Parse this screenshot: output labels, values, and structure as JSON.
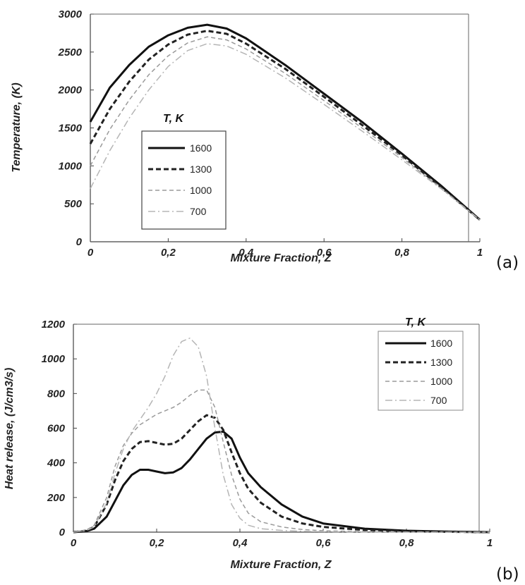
{
  "chart_data": [
    {
      "type": "line",
      "panel_label": "(a)",
      "xlabel": "Mixture Fraction, Z",
      "ylabel": "Temperature, (K)",
      "xlim": [
        0,
        1
      ],
      "ylim": [
        0,
        3000
      ],
      "x_ticks": [
        "0",
        "0,2",
        "0,4",
        "0,6",
        "0,8",
        "1"
      ],
      "y_ticks": [
        "0",
        "500",
        "1000",
        "1500",
        "2000",
        "2500",
        "3000"
      ],
      "legend_title": "T, K",
      "legend_position": "center-left",
      "grid": false,
      "x": [
        0,
        0.05,
        0.1,
        0.15,
        0.2,
        0.25,
        0.3,
        0.35,
        0.4,
        0.5,
        0.6,
        0.7,
        0.8,
        0.9,
        1.0
      ],
      "series": [
        {
          "name": "1600",
          "style": "solid",
          "color": "#111111",
          "values": [
            1580,
            2030,
            2330,
            2570,
            2720,
            2820,
            2860,
            2810,
            2680,
            2330,
            1950,
            1570,
            1160,
            740,
            290
          ]
        },
        {
          "name": "1300",
          "style": "dashed",
          "color": "#222222",
          "values": [
            1290,
            1750,
            2110,
            2400,
            2600,
            2730,
            2780,
            2740,
            2610,
            2280,
            1910,
            1530,
            1140,
            720,
            290
          ]
        },
        {
          "name": "1000",
          "style": "dashed-light",
          "color": "#9a9a9a",
          "values": [
            1000,
            1480,
            1870,
            2200,
            2450,
            2620,
            2700,
            2660,
            2540,
            2220,
            1860,
            1490,
            1110,
            710,
            290
          ]
        },
        {
          "name": "700",
          "style": "dashdot-light",
          "color": "#b5b5b5",
          "values": [
            700,
            1200,
            1630,
            2000,
            2310,
            2520,
            2610,
            2580,
            2470,
            2160,
            1810,
            1450,
            1080,
            700,
            290
          ]
        }
      ]
    },
    {
      "type": "line",
      "panel_label": "(b)",
      "xlabel": "Mixture Fraction, Z",
      "ylabel": "Heat release, (J/cm3/s)",
      "xlim": [
        0,
        1
      ],
      "ylim": [
        0,
        1200
      ],
      "x_ticks": [
        "0",
        "0,2",
        "0,4",
        "0,6",
        "0,8",
        "1"
      ],
      "y_ticks": [
        "0",
        "200",
        "400",
        "600",
        "800",
        "1000",
        "1200"
      ],
      "legend_title": "T, K",
      "legend_position": "top-right",
      "grid": false,
      "x": [
        0,
        0.03,
        0.05,
        0.08,
        0.1,
        0.12,
        0.14,
        0.16,
        0.18,
        0.2,
        0.22,
        0.24,
        0.26,
        0.28,
        0.3,
        0.32,
        0.34,
        0.36,
        0.38,
        0.4,
        0.42,
        0.45,
        0.5,
        0.55,
        0.6,
        0.7,
        0.8,
        0.9,
        1.0
      ],
      "series": [
        {
          "name": "1600",
          "style": "solid",
          "color": "#111111",
          "values": [
            0,
            5,
            20,
            90,
            180,
            270,
            330,
            360,
            360,
            350,
            340,
            345,
            370,
            420,
            480,
            540,
            575,
            580,
            540,
            430,
            340,
            260,
            160,
            90,
            50,
            20,
            8,
            3,
            0
          ]
        },
        {
          "name": "1300",
          "style": "dashed",
          "color": "#222222",
          "values": [
            0,
            8,
            30,
            160,
            300,
            410,
            480,
            520,
            525,
            515,
            505,
            510,
            540,
            590,
            640,
            675,
            660,
            590,
            460,
            340,
            250,
            170,
            90,
            50,
            30,
            12,
            5,
            2,
            0
          ]
        },
        {
          "name": "1000",
          "style": "dashed-light",
          "color": "#9a9a9a",
          "values": [
            0,
            10,
            40,
            200,
            380,
            500,
            570,
            620,
            650,
            680,
            700,
            720,
            750,
            790,
            820,
            820,
            720,
            520,
            330,
            190,
            110,
            60,
            30,
            15,
            8,
            3,
            1,
            0,
            0
          ]
        },
        {
          "name": "700",
          "style": "dashdot-light",
          "color": "#b5b5b5",
          "values": [
            0,
            8,
            30,
            170,
            340,
            480,
            580,
            650,
            720,
            800,
            900,
            1020,
            1100,
            1120,
            1070,
            900,
            600,
            330,
            160,
            80,
            40,
            20,
            10,
            5,
            3,
            1,
            0,
            0,
            0
          ]
        }
      ]
    }
  ]
}
